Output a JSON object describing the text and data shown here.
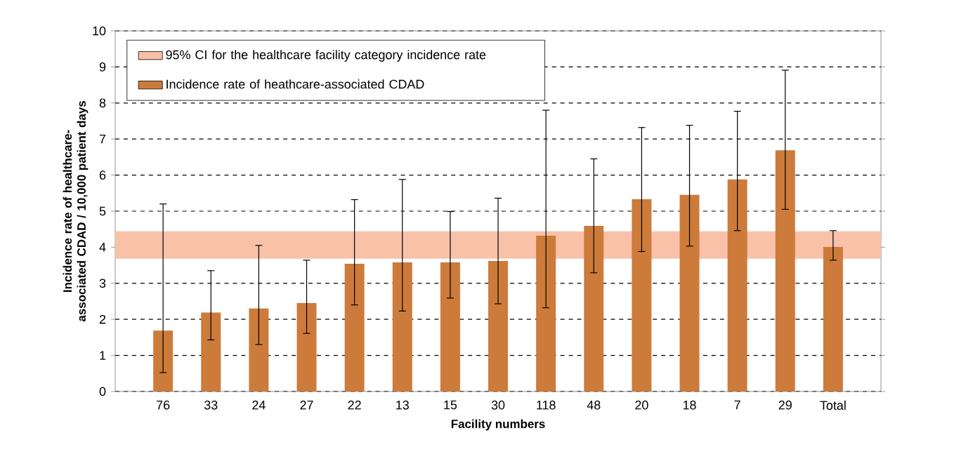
{
  "chart_data": {
    "type": "bar",
    "xlabel": "Facility numbers",
    "ylabel": "Incidence rate of healthcare-associated CDAD / 10,000 patient days",
    "categories": [
      "76",
      "33",
      "24",
      "27",
      "22",
      "13",
      "15",
      "30",
      "118",
      "48",
      "20",
      "18",
      "7",
      "29",
      "Total"
    ],
    "series": [
      {
        "name": "Incidence rate of heathcare-associated CDAD",
        "color": "#cd7b3b",
        "values": [
          1.69,
          2.19,
          2.3,
          2.45,
          3.54,
          3.58,
          3.58,
          3.62,
          4.32,
          4.59,
          5.33,
          5.45,
          5.88,
          6.69,
          4.01
        ],
        "errors": [
          [
            0.52,
            5.2
          ],
          [
            1.43,
            3.35
          ],
          [
            1.3,
            4.05
          ],
          [
            1.61,
            3.64
          ],
          [
            2.4,
            5.32
          ],
          [
            2.23,
            5.88
          ],
          [
            2.59,
            4.99
          ],
          [
            2.43,
            5.36
          ],
          [
            2.32,
            7.8
          ],
          [
            3.29,
            6.45
          ],
          [
            3.88,
            7.32
          ],
          [
            4.03,
            7.38
          ],
          [
            4.46,
            7.77
          ],
          [
            5.05,
            8.91
          ],
          [
            3.64,
            4.46
          ]
        ]
      }
    ],
    "bands": [
      {
        "axis": "y",
        "from": 3.68,
        "to": 4.44,
        "label": "95% CI for the healthcare facility category incidence rate",
        "color": "#f8c1a8"
      }
    ],
    "ylim": [
      0,
      10
    ],
    "yticks": [
      0,
      1,
      2,
      3,
      4,
      5,
      6,
      7,
      8,
      9,
      10
    ],
    "grid": "y",
    "legend": "top left"
  }
}
